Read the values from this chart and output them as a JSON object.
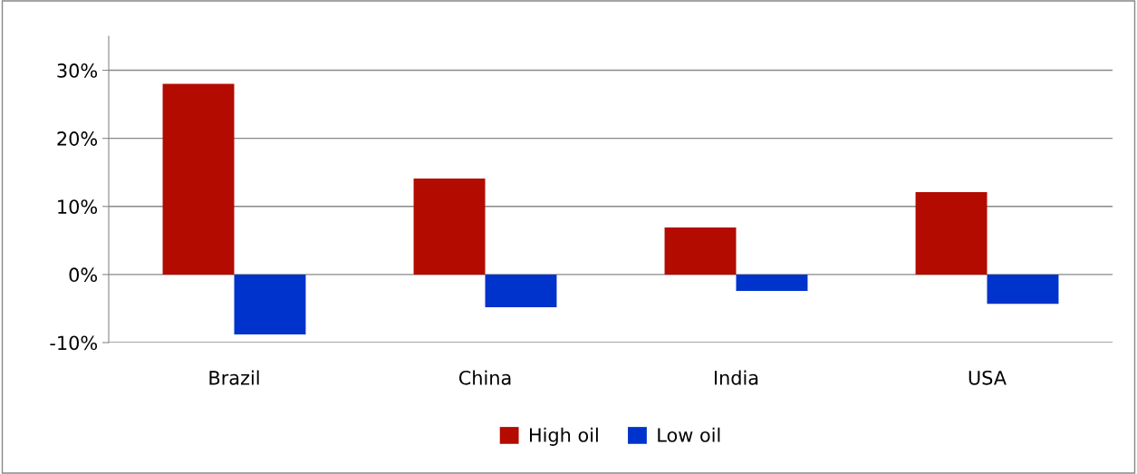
{
  "chart_data": {
    "type": "bar",
    "categories": [
      "Brazil",
      "China",
      "India",
      "USA"
    ],
    "series": [
      {
        "name": "High oil",
        "color": "#b30b00",
        "values": [
          28.0,
          14.1,
          6.9,
          12.1
        ]
      },
      {
        "name": "Low oil",
        "color": "#0033cc",
        "values": [
          -8.8,
          -4.8,
          -2.4,
          -4.3
        ]
      }
    ],
    "ylim": [
      -10,
      35
    ],
    "yticks": [
      {
        "value": -10,
        "label": "-10%"
      },
      {
        "value": 0,
        "label": "0%"
      },
      {
        "value": 10,
        "label": "10%"
      },
      {
        "value": 20,
        "label": "20%"
      },
      {
        "value": 30,
        "label": "30%"
      }
    ],
    "grid": "y",
    "legend": "bottom"
  }
}
